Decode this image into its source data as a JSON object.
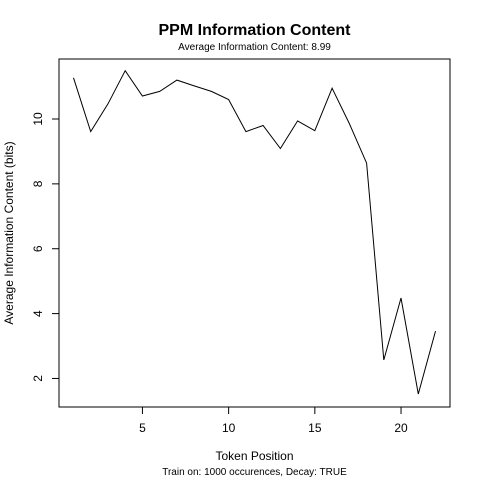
{
  "chart_data": {
    "type": "line",
    "title": "PPM Information Content",
    "subtitle": "Average Information Content: 8.99",
    "xlabel": "Token Position",
    "ylabel": "Average Information Content (bits)",
    "caption": "Train on: 1000 occurences, Decay: TRUE",
    "xlim": [
      0.16,
      22.84
    ],
    "ylim": [
      1.12,
      11.85
    ],
    "xticks": [
      5,
      10,
      15,
      20
    ],
    "yticks": [
      2,
      4,
      6,
      8,
      10
    ],
    "grid": false,
    "legend": "none",
    "line_color": "#000000",
    "series": [
      {
        "x": [
          1,
          2,
          3,
          4,
          5,
          6,
          7,
          8,
          9,
          10,
          11,
          12,
          13,
          14,
          15,
          16,
          17,
          18,
          19,
          20,
          21,
          22
        ],
        "y": [
          11.27,
          9.61,
          10.47,
          11.49,
          10.71,
          10.85,
          11.2,
          11.02,
          10.85,
          10.6,
          9.61,
          9.8,
          9.09,
          9.94,
          9.64,
          10.95,
          9.86,
          8.64,
          2.57,
          4.48,
          1.52,
          3.46
        ]
      }
    ]
  }
}
